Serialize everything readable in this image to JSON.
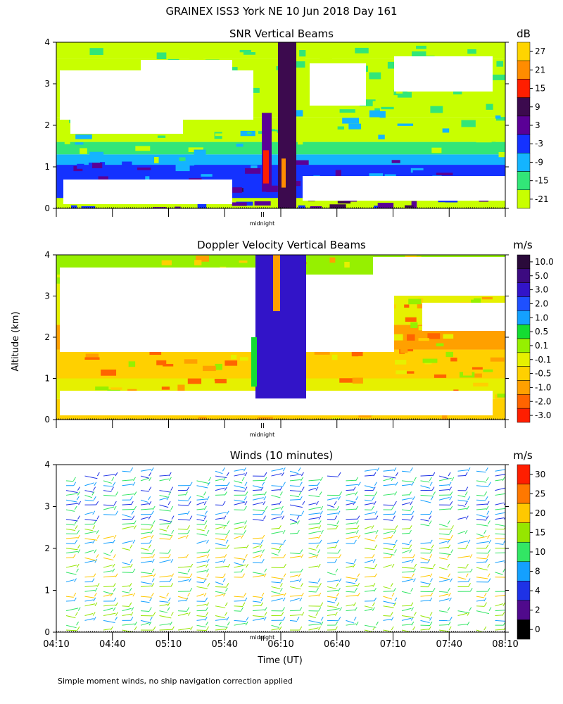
{
  "title": "GRAINEX ISS3 York NE  10 Jun 2018 Day 161",
  "ylabel": "Altitude (km)",
  "xlabel": "Time (UT)",
  "midnight_label": "midnight",
  "footnote": "Simple moment winds, no ship navigation correction applied",
  "x_ticks": [
    "04:10",
    "04:40",
    "05:10",
    "05:40",
    "06:10",
    "06:40",
    "07:10",
    "07:40",
    "08:10"
  ],
  "y_ticks": [
    "0",
    "1",
    "2",
    "3",
    "4"
  ],
  "chart_data": [
    {
      "type": "heatmap",
      "title": "SNR Vertical Beams",
      "unit": "dB",
      "x_range": [
        "04:10",
        "08:10"
      ],
      "ylim": [
        0,
        4
      ],
      "midnight_marker": "06:00",
      "colorbar": {
        "ticks": [
          "27",
          "21",
          "15",
          "9",
          "3",
          "-3",
          "-9",
          "-15",
          "-21"
        ],
        "colors": [
          "#ffd400",
          "#ff8c00",
          "#ff1e00",
          "#3c0a4e",
          "#5a0096",
          "#1432ff",
          "#14b4ff",
          "#32e678",
          "#c8ff00"
        ]
      }
    },
    {
      "type": "heatmap",
      "title": "Doppler Velocity Vertical Beams",
      "unit": "m/s",
      "x_range": [
        "04:10",
        "08:10"
      ],
      "ylim": [
        0,
        4
      ],
      "midnight_marker": "06:00",
      "colorbar": {
        "ticks": [
          "10.0",
          "5.0",
          "3.0",
          "2.0",
          "1.0",
          "0.5",
          "0.1",
          "-0.1",
          "-0.5",
          "-1.0",
          "-2.0",
          "-3.0"
        ],
        "colors": [
          "#2a0a3a",
          "#3c0a80",
          "#3214c8",
          "#1e50ff",
          "#14a0ff",
          "#14dc32",
          "#96f000",
          "#e6f000",
          "#ffd000",
          "#ffa000",
          "#ff6400",
          "#ff1e00"
        ]
      }
    },
    {
      "type": "scatter",
      "title": "Winds (10 minutes)",
      "unit": "m/s",
      "x_range": [
        "04:10",
        "08:10"
      ],
      "ylim": [
        0,
        4
      ],
      "midnight_marker": "06:00",
      "colorbar": {
        "ticks": [
          "30",
          "25",
          "20",
          "15",
          "10",
          "8",
          "4",
          "2",
          "0"
        ],
        "colors": [
          "#ff1e00",
          "#ff7800",
          "#ffc800",
          "#96e600",
          "#32e664",
          "#14a0ff",
          "#1e32e6",
          "#500a8c",
          "#000000"
        ]
      }
    }
  ]
}
